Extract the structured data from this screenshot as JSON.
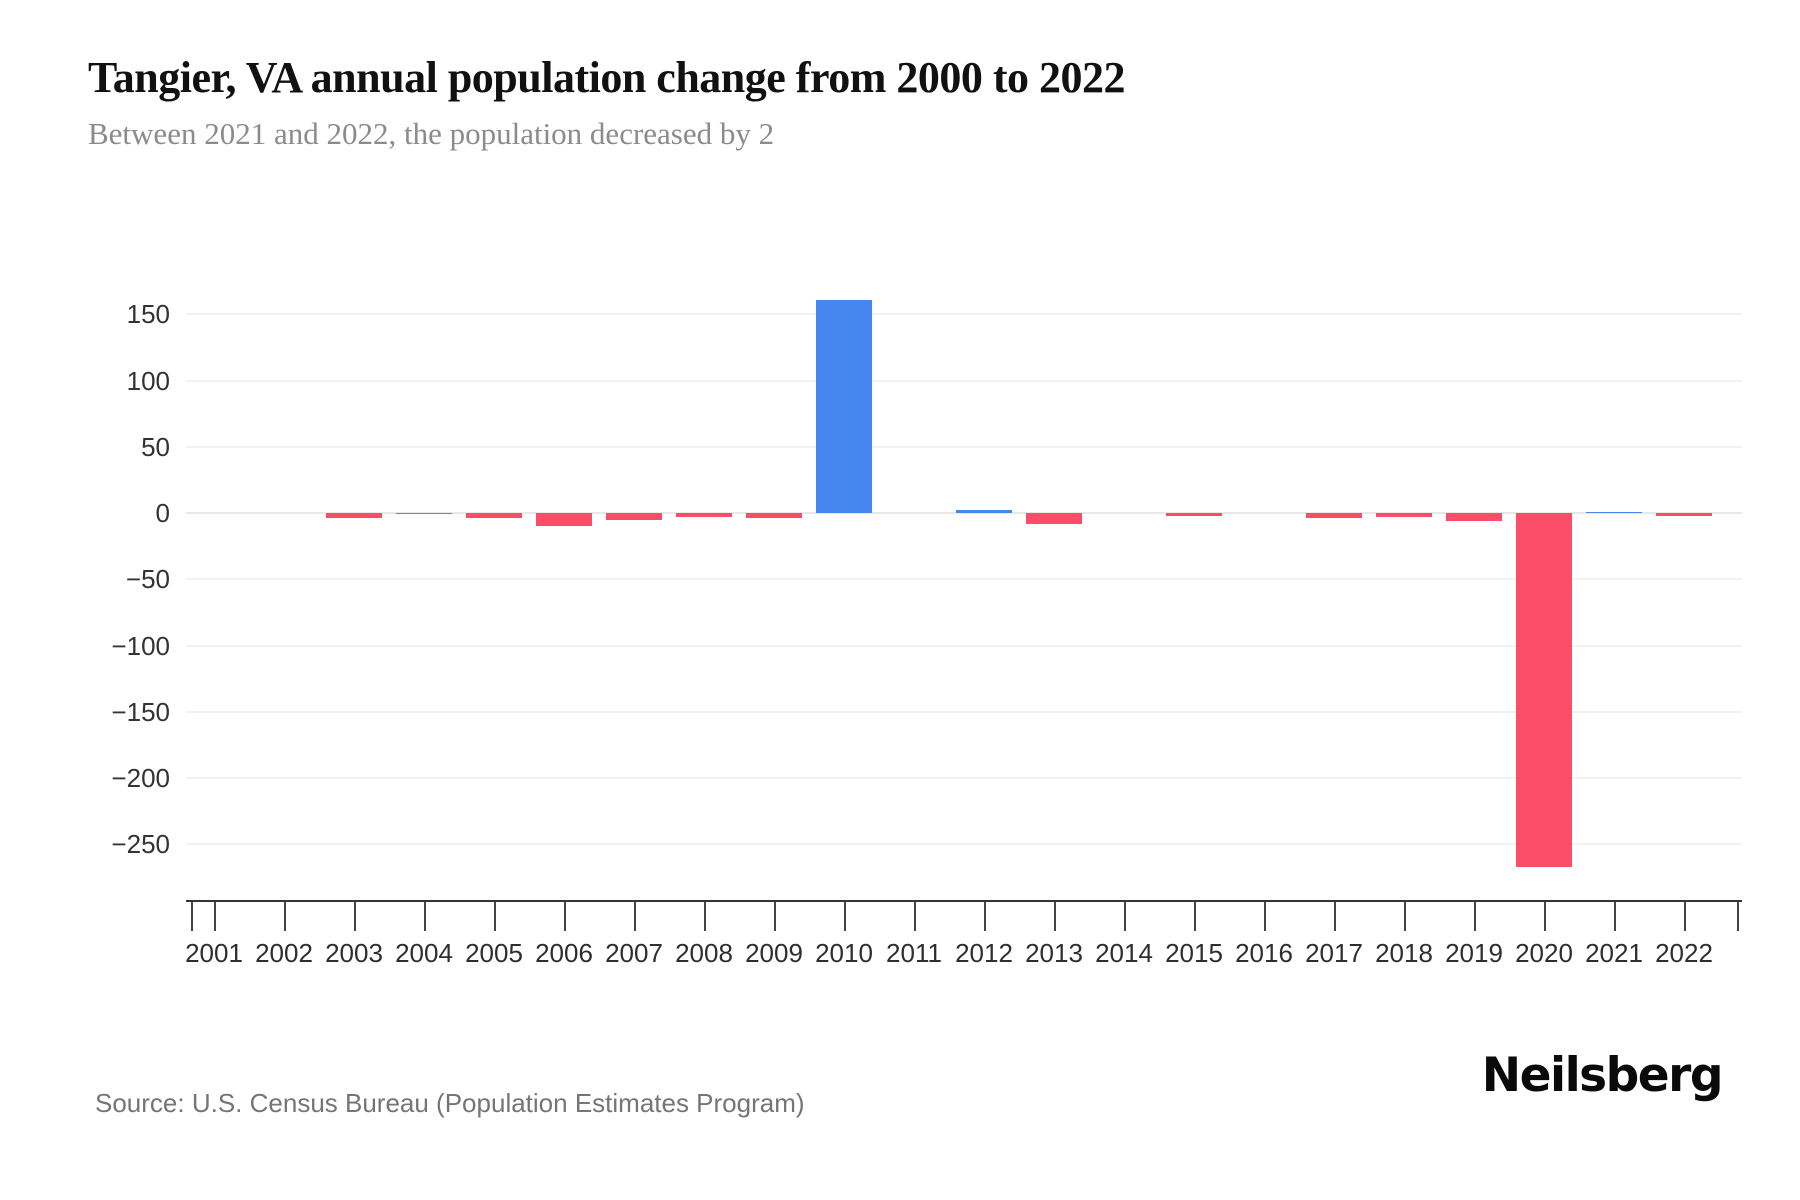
{
  "header": {
    "title": "Tangier, VA annual population change from 2000 to 2022",
    "subtitle": "Between 2021 and 2022, the population decreased by 2"
  },
  "footer": {
    "source": "Source: U.S. Census Bureau (Population Estimates Program)",
    "brand": "Neilsberg"
  },
  "colors": {
    "positive_bar": "#4587ee",
    "negative_bar": "#fb4d67",
    "gridline": "#f2f2f2",
    "axis_text": "#333333",
    "subtitle_text": "#8b8b8b",
    "source_text": "#757575"
  },
  "chart_data": {
    "type": "bar",
    "title": "Tangier, VA annual population change from 2000 to 2022",
    "subtitle": "Between 2021 and 2022, the population decreased by 2",
    "xlabel": "",
    "ylabel": "",
    "categories": [
      "2001",
      "2002",
      "2003",
      "2004",
      "2005",
      "2006",
      "2007",
      "2008",
      "2009",
      "2010",
      "2011",
      "2012",
      "2013",
      "2014",
      "2015",
      "2016",
      "2017",
      "2018",
      "2019",
      "2020",
      "2021",
      "2022"
    ],
    "values": [
      0,
      0,
      -4,
      -1,
      -4,
      -10,
      -5,
      -3,
      -4,
      161,
      0,
      2,
      -8,
      0,
      -2,
      0,
      -4,
      -3,
      -6,
      -267,
      1,
      -2
    ],
    "yticks": [
      150,
      100,
      50,
      0,
      -50,
      -100,
      -150,
      -200,
      -250
    ],
    "ylim": [
      -292,
      200
    ],
    "grid": true,
    "legend": "none",
    "positive_color": "#4587ee",
    "negative_color": "#fb4d67"
  }
}
